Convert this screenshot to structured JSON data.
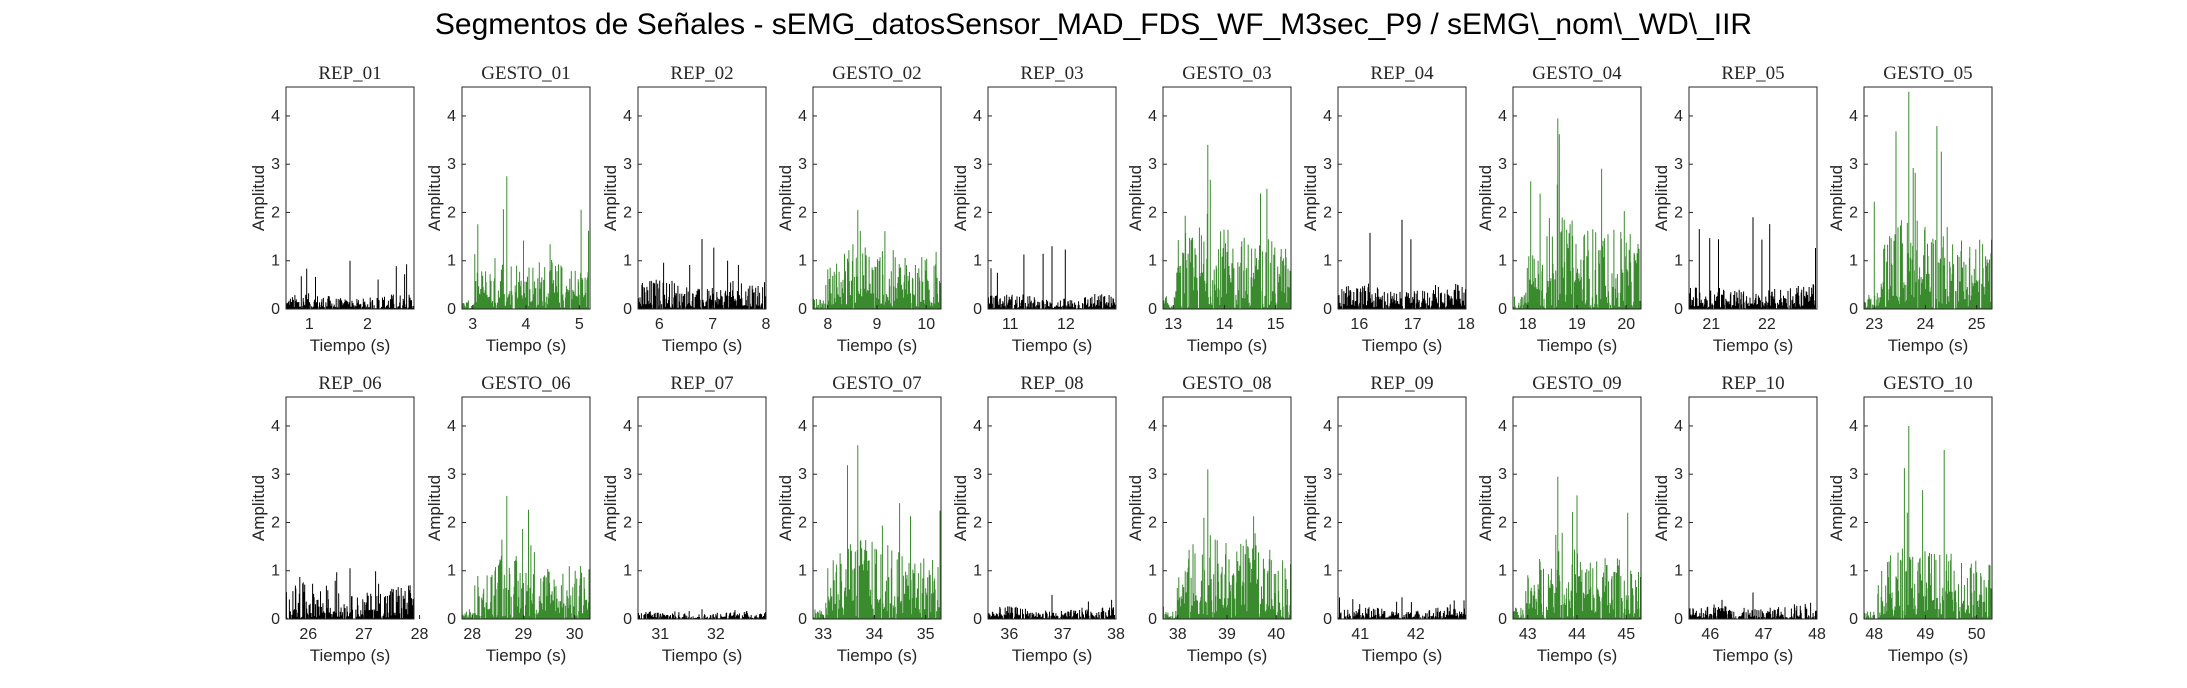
{
  "suptitle": "Segmentos de Señales - sEMG_datosSensor_MAD_FDS_WF_M3sec_P9 / sEMG\\_nom\\_WD\\_IIR",
  "chart_data": {
    "type": "line",
    "xlabel": "Tiempo (s)",
    "ylabel": "Amplitud",
    "ylim": [
      0,
      4.6
    ],
    "yticks": [
      0,
      1,
      2,
      3,
      4
    ],
    "grid": false,
    "colors": {
      "rep": "#000000",
      "gesto": "#3a8a2e"
    },
    "panels": [
      {
        "title": "REP_01",
        "kind": "rep",
        "xlim": [
          0.6,
          2.8
        ],
        "xticks": [
          1,
          2
        ],
        "peak": 1.0,
        "base": 0.15
      },
      {
        "title": "GESTO_01",
        "kind": "gesto",
        "xlim": [
          2.8,
          5.2
        ],
        "xticks": [
          3,
          4,
          5
        ],
        "peak": 2.75,
        "base": 0.6
      },
      {
        "title": "REP_02",
        "kind": "rep",
        "xlim": [
          5.6,
          8.0
        ],
        "xticks": [
          6,
          7,
          8
        ],
        "peak": 1.45,
        "base": 0.3
      },
      {
        "title": "GESTO_02",
        "kind": "gesto",
        "xlim": [
          7.7,
          10.3
        ],
        "xticks": [
          8,
          9,
          10
        ],
        "peak": 2.05,
        "base": 0.7
      },
      {
        "title": "REP_03",
        "kind": "rep",
        "xlim": [
          10.6,
          12.9
        ],
        "xticks": [
          11,
          12
        ],
        "peak": 1.3,
        "base": 0.15
      },
      {
        "title": "GESTO_03",
        "kind": "gesto",
        "xlim": [
          12.8,
          15.3
        ],
        "xticks": [
          13,
          14,
          15
        ],
        "peak": 3.4,
        "base": 0.9
      },
      {
        "title": "REP_04",
        "kind": "rep",
        "xlim": [
          15.6,
          18.0
        ],
        "xticks": [
          16,
          17,
          18
        ],
        "peak": 1.85,
        "base": 0.25
      },
      {
        "title": "GESTO_04",
        "kind": "gesto",
        "xlim": [
          17.7,
          20.3
        ],
        "xticks": [
          18,
          19,
          20
        ],
        "peak": 3.95,
        "base": 1.0
      },
      {
        "title": "REP_05",
        "kind": "rep",
        "xlim": [
          20.6,
          22.9
        ],
        "xticks": [
          21,
          22
        ],
        "peak": 1.9,
        "base": 0.25
      },
      {
        "title": "GESTO_05",
        "kind": "gesto",
        "xlim": [
          22.8,
          25.3
        ],
        "xticks": [
          23,
          24,
          25
        ],
        "peak": 4.5,
        "base": 1.0
      },
      {
        "title": "REP_06",
        "kind": "rep",
        "xlim": [
          25.6,
          27.9
        ],
        "xticks": [
          26,
          27,
          28
        ],
        "peak": 1.05,
        "base": 0.35
      },
      {
        "title": "GESTO_06",
        "kind": "gesto",
        "xlim": [
          27.8,
          30.3
        ],
        "xticks": [
          28,
          29,
          30
        ],
        "peak": 2.55,
        "base": 0.7
      },
      {
        "title": "REP_07",
        "kind": "rep",
        "xlim": [
          30.6,
          32.9
        ],
        "xticks": [
          31,
          32
        ],
        "peak": 0.2,
        "base": 0.08
      },
      {
        "title": "GESTO_07",
        "kind": "gesto",
        "xlim": [
          32.8,
          35.3
        ],
        "xticks": [
          33,
          34,
          35
        ],
        "peak": 3.6,
        "base": 0.9
      },
      {
        "title": "REP_08",
        "kind": "rep",
        "xlim": [
          35.6,
          38.0
        ],
        "xticks": [
          36,
          37,
          38
        ],
        "peak": 0.5,
        "base": 0.12
      },
      {
        "title": "GESTO_08",
        "kind": "gesto",
        "xlim": [
          37.7,
          40.3
        ],
        "xticks": [
          38,
          39,
          40
        ],
        "peak": 3.1,
        "base": 0.9
      },
      {
        "title": "REP_09",
        "kind": "rep",
        "xlim": [
          40.6,
          42.9
        ],
        "xticks": [
          41,
          42
        ],
        "peak": 0.45,
        "base": 0.12
      },
      {
        "title": "GESTO_09",
        "kind": "gesto",
        "xlim": [
          42.7,
          45.3
        ],
        "xticks": [
          43,
          44,
          45
        ],
        "peak": 2.95,
        "base": 0.8
      },
      {
        "title": "REP_10",
        "kind": "rep",
        "xlim": [
          45.6,
          48.0
        ],
        "xticks": [
          46,
          47,
          48
        ],
        "peak": 0.55,
        "base": 0.15
      },
      {
        "title": "GESTO_10",
        "kind": "gesto",
        "xlim": [
          47.8,
          50.3
        ],
        "xticks": [
          48,
          49,
          50
        ],
        "peak": 4.0,
        "base": 0.8
      }
    ]
  }
}
